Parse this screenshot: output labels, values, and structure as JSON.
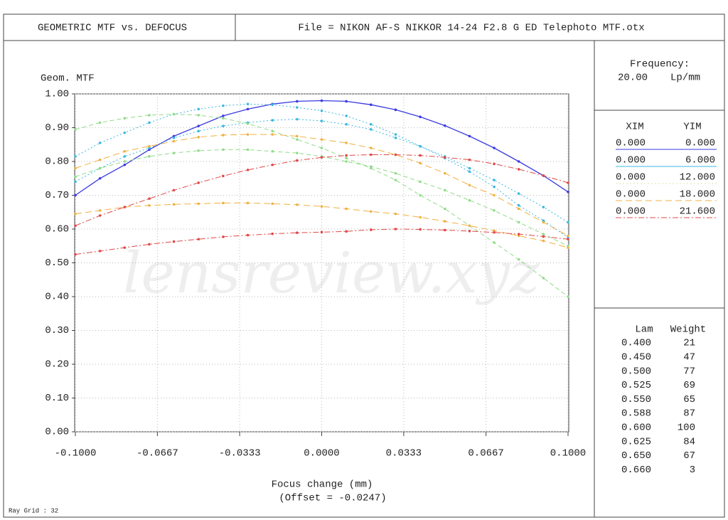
{
  "header": {
    "title": "GEOMETRIC MTF vs. DEFOCUS",
    "file": "File = NIKON AF-S NIKKOR 14-24 F2.8 G ED Telephoto MTF.otx"
  },
  "chart_data": {
    "type": "line",
    "ylabel": "Geom. MTF",
    "xlabel": "Focus change (mm)",
    "offset_note": "(Offset = -0.0247)",
    "watermark": "lensreview.xyz",
    "xlim": [
      -0.1,
      0.1
    ],
    "ylim": [
      0,
      1
    ],
    "grid": true,
    "xticks": [
      {
        "value": -0.1,
        "label": "-0.1000"
      },
      {
        "value": -0.0667,
        "label": "-0.0667"
      },
      {
        "value": -0.0333,
        "label": "-0.0333"
      },
      {
        "value": 0,
        "label": "0.0000"
      },
      {
        "value": 0.0333,
        "label": "0.0333"
      },
      {
        "value": 0.0667,
        "label": "0.0667"
      },
      {
        "value": 0.1,
        "label": "0.1000"
      }
    ],
    "yticks": [
      {
        "value": 0,
        "label": "0.00"
      },
      {
        "value": 0.1,
        "label": "0.10"
      },
      {
        "value": 0.2,
        "label": "0.20"
      },
      {
        "value": 0.3,
        "label": "0.30"
      },
      {
        "value": 0.4,
        "label": "0.40"
      },
      {
        "value": 0.5,
        "label": "0.50"
      },
      {
        "value": 0.6,
        "label": "0.60"
      },
      {
        "value": 0.7,
        "label": "0.70"
      },
      {
        "value": 0.8,
        "label": "0.80"
      },
      {
        "value": 0.9,
        "label": "0.90"
      },
      {
        "value": 1,
        "label": "1.00"
      }
    ],
    "x": [
      -0.1,
      -0.09,
      -0.08,
      -0.07,
      -0.06,
      -0.05,
      -0.04,
      -0.03,
      -0.02,
      -0.01,
      0,
      0.01,
      0.02,
      0.03,
      0.04,
      0.05,
      0.06,
      0.07,
      0.08,
      0.09,
      0.1
    ],
    "series": [
      {
        "color": "#3a3ae0",
        "dash": "none",
        "values": [
          0.7,
          0.75,
          0.79,
          0.835,
          0.875,
          0.905,
          0.935,
          0.955,
          0.97,
          0.978,
          0.98,
          0.978,
          0.968,
          0.953,
          0.932,
          0.906,
          0.875,
          0.84,
          0.8,
          0.758,
          0.71
        ]
      },
      {
        "color": "#38b8e0",
        "dash": "2 3",
        "values": [
          0.815,
          0.855,
          0.885,
          0.915,
          0.94,
          0.955,
          0.965,
          0.97,
          0.968,
          0.96,
          0.95,
          0.935,
          0.91,
          0.88,
          0.845,
          0.815,
          0.78,
          0.745,
          0.705,
          0.665,
          0.62
        ]
      },
      {
        "color": "#38b8e0",
        "dash": "2 3",
        "values": [
          0.74,
          0.78,
          0.815,
          0.84,
          0.87,
          0.89,
          0.905,
          0.915,
          0.922,
          0.925,
          0.92,
          0.91,
          0.895,
          0.87,
          0.845,
          0.81,
          0.77,
          0.725,
          0.67,
          0.625,
          0.575
        ]
      },
      {
        "color": "#90dc88",
        "dash": "6 4",
        "values": [
          0.895,
          0.915,
          0.928,
          0.937,
          0.94,
          0.937,
          0.928,
          0.912,
          0.89,
          0.865,
          0.84,
          0.81,
          0.78,
          0.745,
          0.7,
          0.66,
          0.61,
          0.56,
          0.51,
          0.455,
          0.4
        ]
      },
      {
        "color": "#90dc88",
        "dash": "6 4",
        "values": [
          0.755,
          0.78,
          0.8,
          0.815,
          0.825,
          0.832,
          0.835,
          0.835,
          0.83,
          0.825,
          0.815,
          0.8,
          0.785,
          0.765,
          0.74,
          0.715,
          0.685,
          0.655,
          0.62,
          0.585,
          0.55
        ]
      },
      {
        "color": "#f0b040",
        "dash": "9 5",
        "values": [
          0.78,
          0.805,
          0.83,
          0.845,
          0.86,
          0.872,
          0.878,
          0.88,
          0.88,
          0.875,
          0.865,
          0.855,
          0.84,
          0.82,
          0.795,
          0.765,
          0.73,
          0.7,
          0.66,
          0.62,
          0.58
        ]
      },
      {
        "color": "#f0b040",
        "dash": "9 5",
        "values": [
          0.645,
          0.655,
          0.665,
          0.67,
          0.673,
          0.675,
          0.677,
          0.677,
          0.675,
          0.672,
          0.667,
          0.66,
          0.652,
          0.645,
          0.635,
          0.623,
          0.61,
          0.595,
          0.58,
          0.565,
          0.545
        ]
      },
      {
        "color": "#e04848",
        "dash": "8 3 2 3",
        "values": [
          0.61,
          0.64,
          0.665,
          0.69,
          0.715,
          0.737,
          0.757,
          0.775,
          0.79,
          0.803,
          0.812,
          0.818,
          0.82,
          0.82,
          0.818,
          0.812,
          0.805,
          0.793,
          0.777,
          0.758,
          0.737
        ]
      },
      {
        "color": "#e04848",
        "dash": "8 3 2 3",
        "values": [
          0.525,
          0.535,
          0.545,
          0.555,
          0.563,
          0.57,
          0.577,
          0.582,
          0.586,
          0.589,
          0.591,
          0.593,
          0.598,
          0.6,
          0.599,
          0.597,
          0.594,
          0.59,
          0.585,
          0.578,
          0.57
        ]
      }
    ]
  },
  "frequency": {
    "label": "Frequency:",
    "value": "20.00",
    "unit": "Lp/mm"
  },
  "fields": {
    "headers": [
      "XIM",
      "YIM"
    ],
    "rows": [
      {
        "xim": "0.000",
        "yim": "0.000",
        "color": "#3a3ae0",
        "dash": "none"
      },
      {
        "xim": "0.000",
        "yim": "6.000",
        "color": "#38b8e0",
        "dash": "none"
      },
      {
        "xim": "0.000",
        "yim": "12.000",
        "color": "#d8e8a0",
        "dash": "2 3"
      },
      {
        "xim": "0.000",
        "yim": "18.000",
        "color": "#f0b040",
        "dash": "9 5"
      },
      {
        "xim": "0.000",
        "yim": "21.600",
        "color": "#e04848",
        "dash": "8 3 2 3"
      }
    ]
  },
  "wavelengths": {
    "headers": [
      "Lam",
      "Weight"
    ],
    "rows": [
      [
        "0.400",
        "21"
      ],
      [
        "0.450",
        "47"
      ],
      [
        "0.500",
        "77"
      ],
      [
        "0.525",
        "69"
      ],
      [
        "0.550",
        "65"
      ],
      [
        "0.588",
        "87"
      ],
      [
        "0.600",
        "100"
      ],
      [
        "0.625",
        "84"
      ],
      [
        "0.650",
        "67"
      ],
      [
        "0.660",
        "3"
      ]
    ]
  },
  "footer": "Ray Grid : 32"
}
